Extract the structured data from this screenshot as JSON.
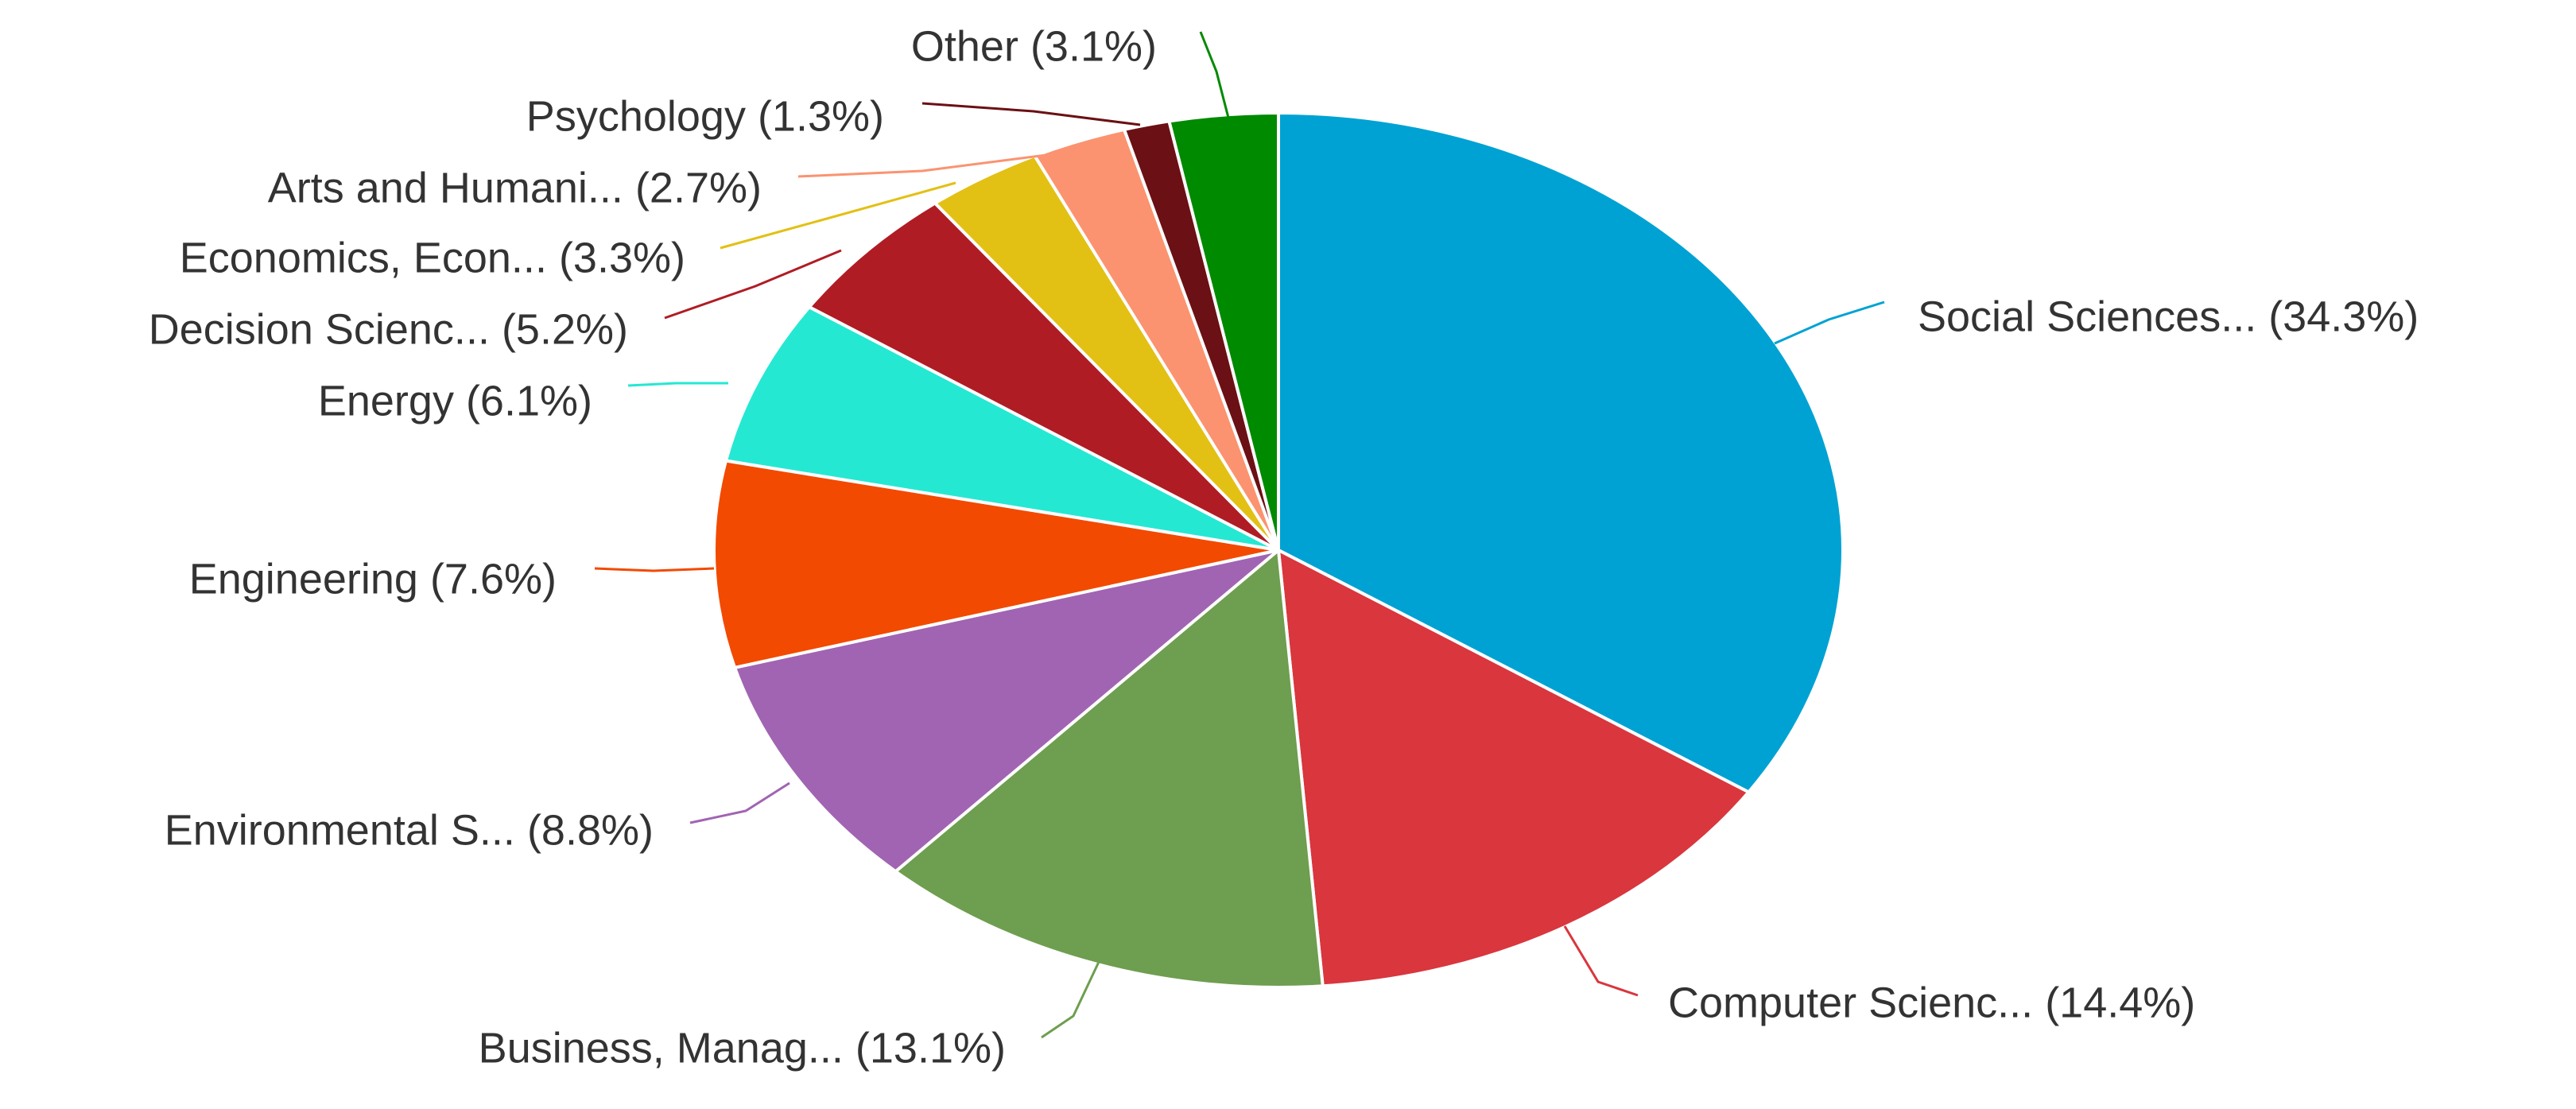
{
  "chart_data": {
    "type": "pie",
    "title": "",
    "start_angle_deg": 0,
    "direction": "clockwise",
    "slices": [
      {
        "label": "Social Sciences...",
        "value": 34.3,
        "display": "Social Sciences... (34.3%)",
        "color": "#00a2d3"
      },
      {
        "label": "Computer Scienc...",
        "value": 14.4,
        "display": "Computer Scienc... (14.4%)",
        "color": "#d9363e"
      },
      {
        "label": "Business, Manag...",
        "value": 13.1,
        "display": "Business, Manag... (13.1%)",
        "color": "#6e9e4f"
      },
      {
        "label": "Environmental S...",
        "value": 8.8,
        "display": "Environmental S... (8.8%)",
        "color": "#a164b2"
      },
      {
        "label": "Engineering",
        "value": 7.6,
        "display": "Engineering (7.6%)",
        "color": "#f24a00"
      },
      {
        "label": "Energy",
        "value": 6.1,
        "display": "Energy (6.1%)",
        "color": "#25e8d3"
      },
      {
        "label": "Decision Scienc...",
        "value": 5.2,
        "display": "Decision Scienc... (5.2%)",
        "color": "#b01c24"
      },
      {
        "label": "Economics, Econ...",
        "value": 3.3,
        "display": "Economics, Econ... (3.3%)",
        "color": "#e3c014"
      },
      {
        "label": "Arts and Humani...",
        "value": 2.7,
        "display": "Arts and Humani... (2.7%)",
        "color": "#fb9370"
      },
      {
        "label": "Psychology",
        "value": 1.3,
        "display": "Psychology (1.3%)",
        "color": "#6b1014"
      },
      {
        "label": "Other",
        "value": 3.1,
        "display": "Other (3.1%)",
        "color": "#008a00"
      }
    ]
  }
}
